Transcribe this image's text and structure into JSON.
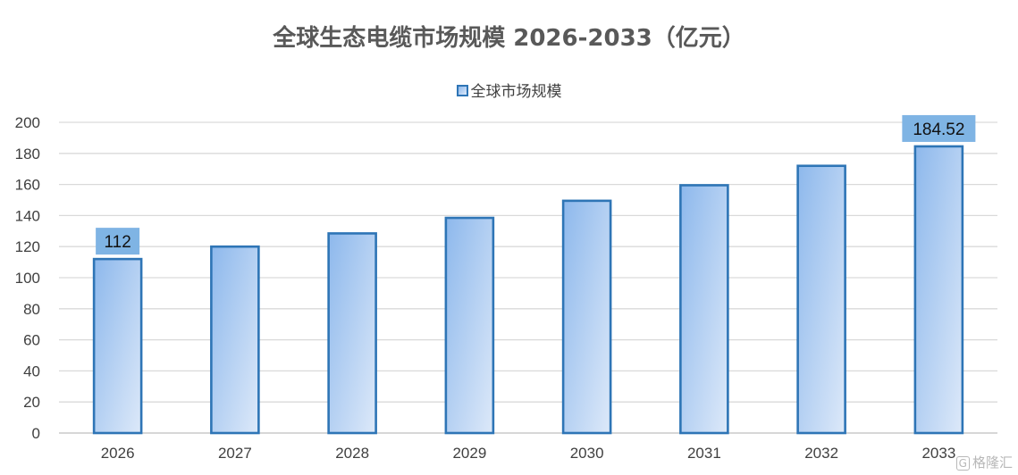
{
  "chart_data": {
    "type": "bar",
    "title": "全球生态电缆市场规模 2026-2033（亿元）",
    "categories": [
      "2026",
      "2027",
      "2028",
      "2029",
      "2030",
      "2031",
      "2032",
      "2033"
    ],
    "series": [
      {
        "name": "全球市场规模",
        "values": [
          112,
          120,
          128.5,
          138.5,
          149.5,
          159.5,
          172,
          184.52
        ]
      }
    ],
    "data_labels": [
      {
        "category": "2026",
        "text": "112"
      },
      {
        "category": "2033",
        "text": "184.52"
      }
    ],
    "ylim": [
      0,
      200
    ],
    "yticks": [
      "0",
      "20",
      "40",
      "60",
      "80",
      "100",
      "120",
      "140",
      "160",
      "180",
      "200"
    ],
    "grid": true,
    "legend_position": "top",
    "colors": {
      "bar_fill_top": "#8db8ec",
      "bar_fill_bottom": "#dde9f9",
      "bar_border": "#2E75B6",
      "data_label_bg": "#7fb4e4",
      "gridline": "#d9d9d9"
    }
  },
  "watermark": {
    "text": "格隆汇",
    "glyph": "G"
  }
}
